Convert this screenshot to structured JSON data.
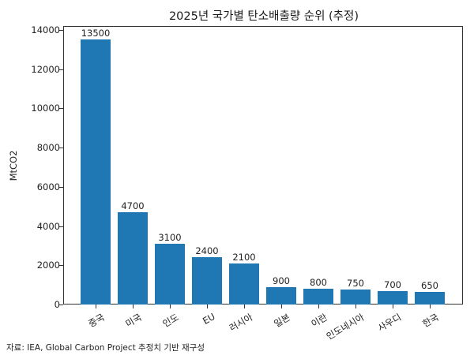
{
  "chart_data": {
    "type": "bar",
    "title": "2025년 국가별 탄소배출량 순위 (추정)",
    "xlabel": "",
    "ylabel": "MtCO2",
    "categories": [
      "중국",
      "미국",
      "인도",
      "EU",
      "러시아",
      "일본",
      "이란",
      "인도네시아",
      "사우디",
      "한국"
    ],
    "values": [
      13500,
      4700,
      3100,
      2400,
      2100,
      900,
      800,
      750,
      700,
      650
    ],
    "value_labels": [
      "13500",
      "4700",
      "3100",
      "2400",
      "2100",
      "900",
      "800",
      "750",
      "700",
      "650"
    ],
    "ylim": [
      0,
      14000
    ],
    "yticks": [
      "0",
      "2000",
      "4000",
      "6000",
      "8000",
      "10000",
      "12000",
      "14000"
    ],
    "ytick_values": [
      0,
      2000,
      4000,
      6000,
      8000,
      10000,
      12000,
      14000
    ],
    "grid": false,
    "legend": null,
    "bar_color": "#1f77b4",
    "xtick_rotation": 30
  },
  "footer": {
    "source": "자료: IEA, Global Carbon Project 추정치 기반 재구성"
  }
}
